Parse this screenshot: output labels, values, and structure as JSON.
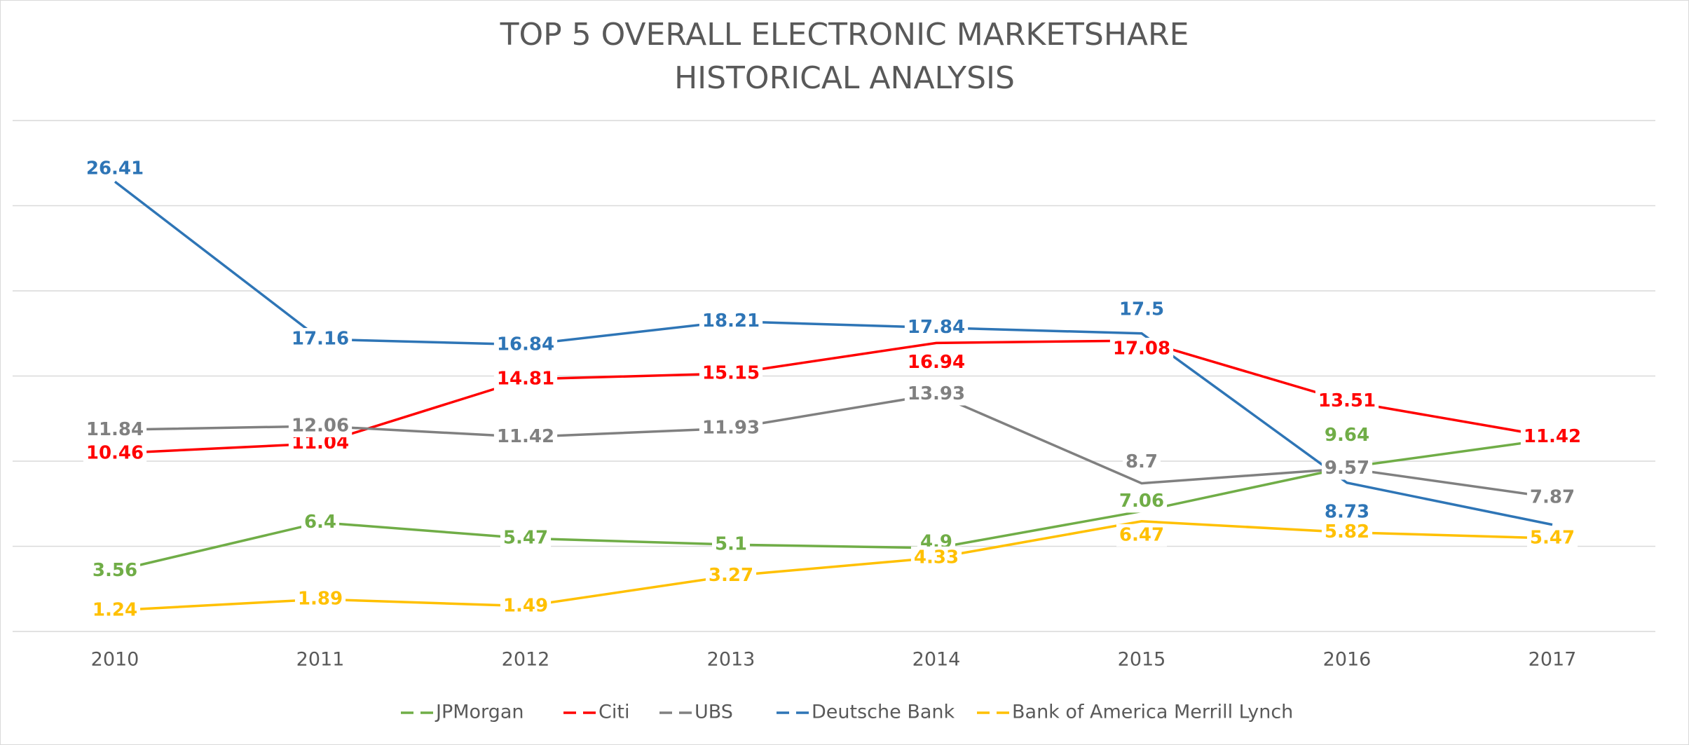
{
  "chart_data": {
    "type": "line",
    "title": [
      "TOP 5 OVERALL ELECTRONIC MARKETSHARE",
      "HISTORICAL ANALYSIS"
    ],
    "categories": [
      "2010",
      "2011",
      "2012",
      "2013",
      "2014",
      "2015",
      "2016",
      "2017"
    ],
    "ylim": [
      0,
      30
    ],
    "yticks": [
      0,
      5,
      10,
      15,
      20,
      25,
      30
    ],
    "grid": true,
    "legend": "bottom",
    "series": [
      {
        "name": "JPMorgan",
        "color": "#70ad47",
        "values": [
          3.56,
          6.4,
          5.47,
          5.1,
          4.9,
          7.06,
          9.64,
          11.3
        ],
        "value_labels": [
          "3.56",
          "6.4",
          "5.47",
          "5.1",
          "4.9",
          "7.06",
          "9.64",
          null
        ]
      },
      {
        "name": "Citi",
        "color": "#ff0000",
        "values": [
          10.46,
          11.04,
          14.81,
          15.15,
          16.94,
          17.08,
          13.51,
          11.42
        ]
      },
      {
        "name": "UBS",
        "color": "#808080",
        "values": [
          11.84,
          12.06,
          11.42,
          11.93,
          13.93,
          8.7,
          9.57,
          7.87
        ]
      },
      {
        "name": "Deutsche Bank",
        "color": "#2e75b6",
        "values": [
          26.41,
          17.16,
          16.84,
          18.21,
          17.84,
          17.5,
          8.73,
          6.27
        ],
        "value_labels": [
          "26.41",
          "17.16",
          "16.84",
          "18.21",
          "17.84",
          "17.5",
          "8.73",
          null
        ]
      },
      {
        "name": "Bank of America Merrill Lynch",
        "color": "#ffc000",
        "values": [
          1.24,
          1.89,
          1.49,
          3.27,
          4.33,
          6.47,
          5.82,
          5.47
        ]
      }
    ]
  }
}
